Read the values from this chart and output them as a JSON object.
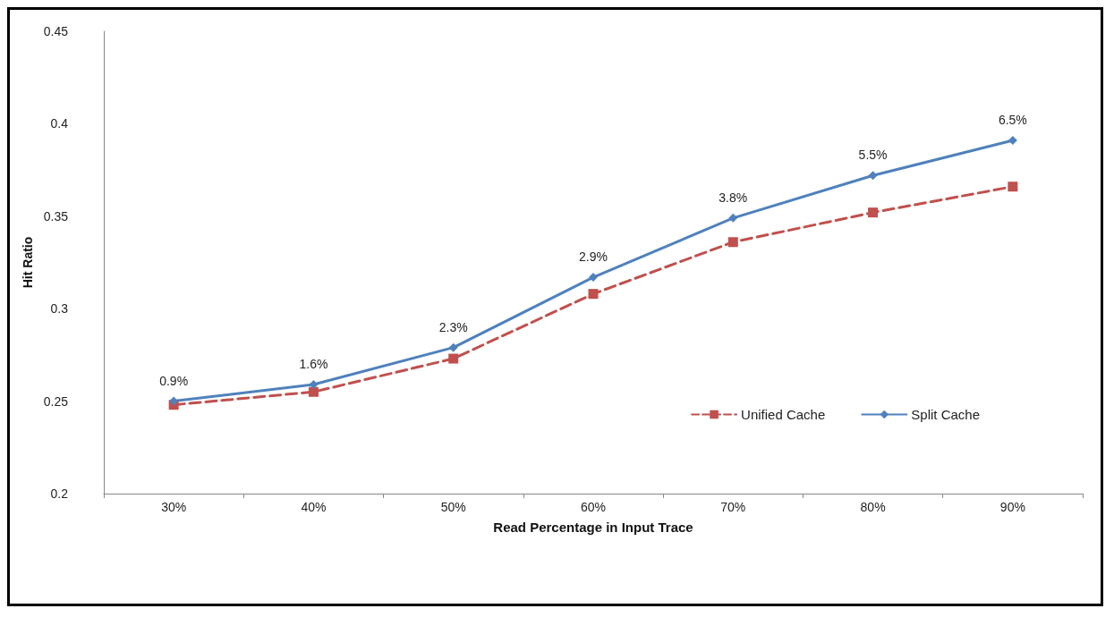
{
  "chart_data": {
    "type": "line",
    "xlabel": "Read Percentage in Input Trace",
    "ylabel": "Hit Ratio",
    "categories": [
      "30%",
      "40%",
      "50%",
      "60%",
      "70%",
      "80%",
      "90%"
    ],
    "series": [
      {
        "name": "Unified Cache",
        "color": "#c0504d",
        "marker": "square",
        "line_style": "dashed",
        "values": [
          0.248,
          0.255,
          0.273,
          0.308,
          0.336,
          0.352,
          0.366
        ]
      },
      {
        "name": "Split Cache",
        "color": "#4f81bd",
        "marker": "diamond",
        "line_style": "solid",
        "values": [
          0.25,
          0.259,
          0.279,
          0.317,
          0.349,
          0.372,
          0.391
        ]
      }
    ],
    "annotations": [
      {
        "text": "0.9%",
        "x": "30%",
        "y": 0.25
      },
      {
        "text": "1.6%",
        "x": "40%",
        "y": 0.259
      },
      {
        "text": "2.3%",
        "x": "50%",
        "y": 0.279
      },
      {
        "text": "2.9%",
        "x": "60%",
        "y": 0.317
      },
      {
        "text": "3.8%",
        "x": "70%",
        "y": 0.349
      },
      {
        "text": "5.5%",
        "x": "80%",
        "y": 0.372
      },
      {
        "text": "6.5%",
        "x": "90%",
        "y": 0.391
      }
    ],
    "ylim": [
      0.2,
      0.45
    ],
    "yticks": [
      0.2,
      0.25,
      0.3,
      0.35,
      0.4,
      0.45
    ],
    "grid": false,
    "legend": "right"
  }
}
